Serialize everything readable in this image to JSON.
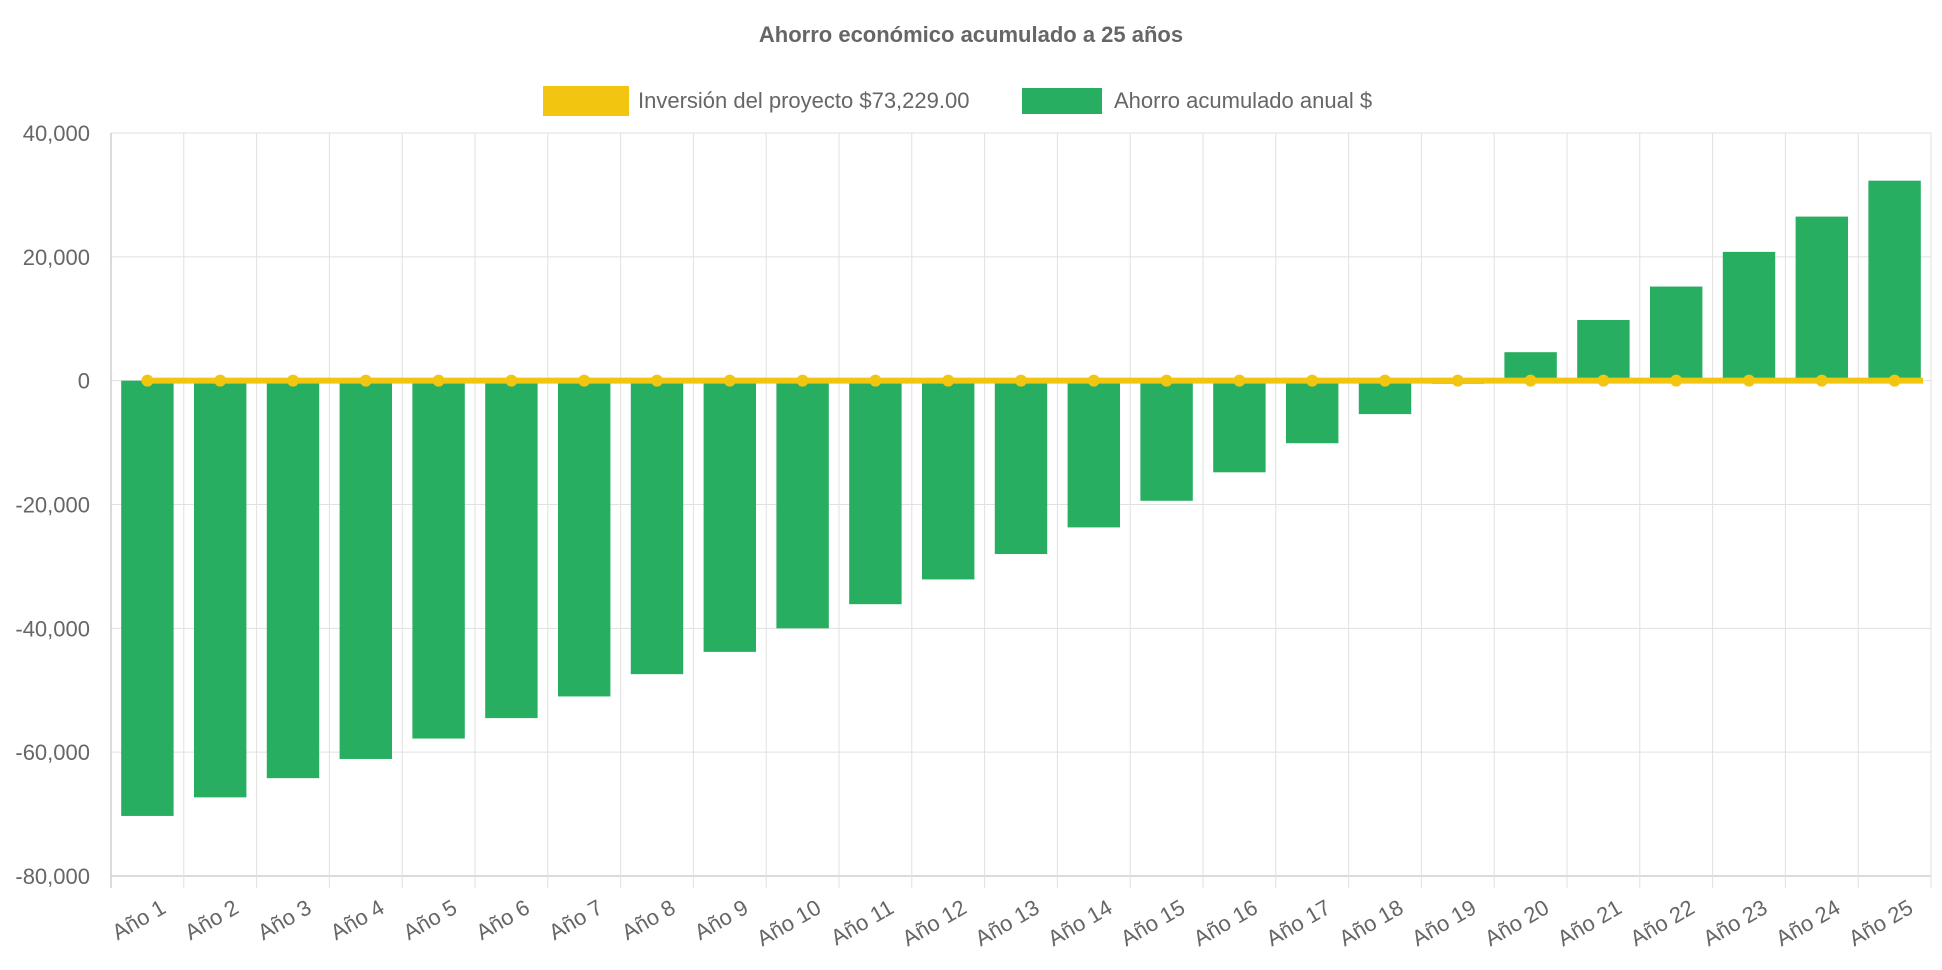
{
  "chart_data": {
    "type": "bar",
    "title": "Ahorro económico acumulado a 25 años",
    "categories": [
      "Año 1",
      "Año 2",
      "Año 3",
      "Año 4",
      "Año 5",
      "Año 6",
      "Año 7",
      "Año 8",
      "Año 9",
      "Año 10",
      "Año 11",
      "Año 12",
      "Año 13",
      "Año 14",
      "Año 15",
      "Año 16",
      "Año 17",
      "Año 18",
      "Año 19",
      "Año 20",
      "Año 21",
      "Año 22",
      "Año 23",
      "Año 24",
      "Año 25"
    ],
    "series": [
      {
        "name": "Inversión del proyecto $73,229.00",
        "kind": "line",
        "color": "#f2c511",
        "values": [
          0,
          0,
          0,
          0,
          0,
          0,
          0,
          0,
          0,
          0,
          0,
          0,
          0,
          0,
          0,
          0,
          0,
          0,
          0,
          0,
          0,
          0,
          0,
          0,
          0
        ]
      },
      {
        "name": "Ahorro acumulado anual $",
        "kind": "bar",
        "color": "#27ae60",
        "values": [
          -70300,
          -67300,
          -64200,
          -61100,
          -57800,
          -54500,
          -51000,
          -47400,
          -43800,
          -40000,
          -36100,
          -32100,
          -28000,
          -23700,
          -19400,
          -14800,
          -10100,
          -5400,
          -500,
          4600,
          9800,
          15200,
          20800,
          26500,
          32300
        ]
      }
    ],
    "ylim": [
      -80000,
      40000
    ],
    "yticks": [
      40000,
      20000,
      0,
      -20000,
      -40000,
      -60000,
      -80000
    ],
    "ytick_labels": [
      "40,000",
      "20,000",
      "0",
      "-20,000",
      "-40,000",
      "-60,000",
      "-80,000"
    ],
    "grid": true,
    "legend": "top-center"
  }
}
